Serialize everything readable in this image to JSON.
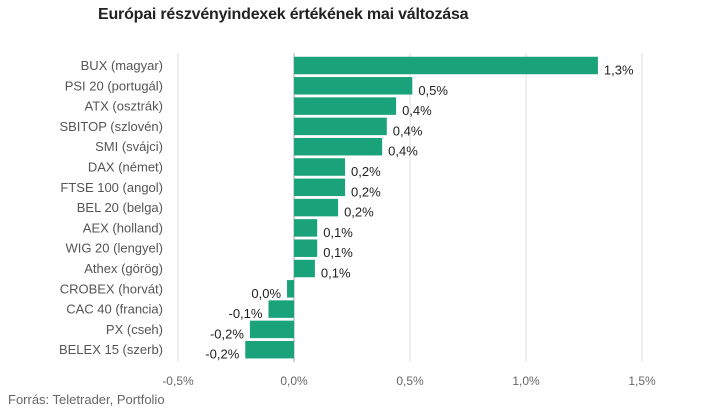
{
  "title": "Európai részvényindexek értékének mai változása",
  "source": "Forrás: Teletrader, Portfolio",
  "chart_data": {
    "type": "bar",
    "orientation": "horizontal",
    "title": "Európai részvényindexek értékének mai változása",
    "categories": [
      "BUX (magyar)",
      "PSI 20 (portugál)",
      "ATX (osztrák)",
      "SBITOP (szlovén)",
      "SMI (svájci)",
      "DAX (német)",
      "FTSE 100 (angol)",
      "BEL 20 (belga)",
      "AEX (holland)",
      "WIG 20 (lengyel)",
      "Athex (görög)",
      "CROBEX (horvát)",
      "CAC 40 (francia)",
      "PX (cseh)",
      "BELEX 15 (szerb)"
    ],
    "values": [
      1.31,
      0.51,
      0.44,
      0.4,
      0.38,
      0.22,
      0.22,
      0.19,
      0.1,
      0.1,
      0.09,
      -0.03,
      -0.11,
      -0.19,
      -0.21
    ],
    "value_labels": [
      "1,3%",
      "0,5%",
      "0,4%",
      "0,4%",
      "0,4%",
      "0,2%",
      "0,2%",
      "0,2%",
      "0,1%",
      "0,1%",
      "0,1%",
      "0,0%",
      "-0,1%",
      "-0,2%",
      "-0,2%"
    ],
    "xlim": [
      -0.5,
      1.5
    ],
    "xticks": [
      -0.5,
      0.0,
      0.5,
      1.0,
      1.5
    ],
    "xtick_labels": [
      "-0,5%",
      "0,0%",
      "0,5%",
      "1,0%",
      "1,5%"
    ],
    "grid": "vertical",
    "bar_color": "#1aa27a",
    "grid_color": "#dddddd",
    "axis_color": "#aaaaaa"
  }
}
